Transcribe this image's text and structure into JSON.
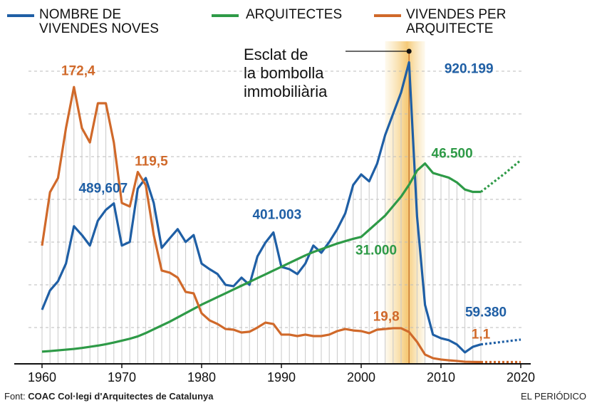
{
  "chart_data": {
    "type": "line",
    "x": [
      1960,
      1961,
      1962,
      1963,
      1964,
      1965,
      1966,
      1967,
      1968,
      1969,
      1970,
      1971,
      1972,
      1973,
      1974,
      1975,
      1976,
      1977,
      1978,
      1979,
      1980,
      1981,
      1982,
      1983,
      1984,
      1985,
      1986,
      1987,
      1988,
      1989,
      1990,
      1991,
      1992,
      1993,
      1994,
      1995,
      1996,
      1997,
      1998,
      1999,
      2000,
      2001,
      2002,
      2003,
      2004,
      2005,
      2006,
      2007,
      2008,
      2009,
      2010,
      2011,
      2012,
      2013,
      2014,
      2015,
      2016,
      2017,
      2018,
      2019,
      2020
    ],
    "xlim": [
      1960,
      2020
    ],
    "xticks": [
      1960,
      1970,
      1980,
      1990,
      2000,
      2010,
      2020
    ],
    "dashed_from": 2015,
    "highlight_range": [
      2003,
      2008
    ],
    "annotation": {
      "lines": [
        "Esclat de",
        "la bombolla",
        "immobiliària"
      ],
      "x": 2006
    },
    "series": [
      {
        "name": "NOMBRE DE VIVENDES NOVES",
        "color": "#1f5fa5",
        "ylim": [
          0,
          980000
        ],
        "values": [
          165000,
          224000,
          252000,
          306000,
          420000,
          393000,
          361000,
          437000,
          470000,
          489607,
          361000,
          372000,
          535000,
          567000,
          491000,
          354000,
          383000,
          411000,
          372000,
          393000,
          306000,
          289000,
          274000,
          241000,
          237000,
          263000,
          241000,
          328000,
          370000,
          401003,
          296000,
          289000,
          274000,
          306000,
          361000,
          339000,
          372000,
          411000,
          459000,
          546000,
          578000,
          557000,
          611000,
          698000,
          763000,
          828000,
          920199,
          450000,
          180000,
          89000,
          78000,
          72000,
          59000,
          35000,
          52000,
          59380,
          62000,
          65000,
          68000,
          71000,
          74000
        ],
        "value_labels": [
          null,
          null,
          null,
          null,
          null,
          null,
          null,
          null,
          null,
          "489,607",
          null,
          null,
          null,
          null,
          null,
          null,
          null,
          null,
          null,
          null,
          null,
          null,
          null,
          null,
          null,
          null,
          null,
          null,
          null,
          "401.003",
          null,
          null,
          null,
          null,
          null,
          null,
          null,
          null,
          null,
          null,
          null,
          null,
          null,
          null,
          null,
          null,
          "920.199",
          null,
          null,
          null,
          null,
          null,
          null,
          null,
          null,
          "59.380",
          null,
          null,
          null,
          null,
          null
        ]
      },
      {
        "name": "ARQUITECTES",
        "color": "#2e9a47",
        "ylim": [
          4200,
          72000
        ],
        "values": [
          6770,
          6900,
          7050,
          7200,
          7350,
          7550,
          7800,
          8050,
          8350,
          8700,
          9100,
          9500,
          10000,
          10700,
          11500,
          12300,
          13100,
          14000,
          14900,
          15800,
          16700,
          17500,
          18300,
          19100,
          19900,
          20700,
          21500,
          22300,
          23100,
          23900,
          24700,
          25500,
          26300,
          27100,
          27800,
          28400,
          29000,
          29600,
          30100,
          30600,
          31000,
          32500,
          34000,
          35500,
          37500,
          39500,
          42000,
          45000,
          46500,
          44500,
          44000,
          43500,
          42500,
          41000,
          40500,
          40500,
          41800,
          43100,
          44400,
          45800,
          47200
        ],
        "value_labels": [
          null,
          null,
          null,
          null,
          null,
          null,
          null,
          null,
          null,
          null,
          null,
          null,
          null,
          null,
          null,
          null,
          null,
          null,
          null,
          null,
          null,
          null,
          null,
          null,
          null,
          null,
          null,
          null,
          null,
          null,
          null,
          null,
          null,
          null,
          null,
          null,
          null,
          null,
          null,
          null,
          "31.000",
          null,
          null,
          null,
          null,
          null,
          null,
          null,
          "46.500",
          null,
          null,
          null,
          null,
          null,
          null,
          null,
          null,
          null,
          null,
          null,
          null
        ]
      },
      {
        "name": "VIVENDES PER ARQUITECTE",
        "color": "#d0692a",
        "ylim": [
          0,
          200
        ],
        "values": [
          73.6,
          106.9,
          115.7,
          146.8,
          172.4,
          146.8,
          137.9,
          162.3,
          162.3,
          137.9,
          100.2,
          98,
          119.5,
          111.3,
          80.3,
          58.1,
          56.8,
          53.7,
          44.8,
          43.9,
          31.5,
          27.1,
          24.8,
          21.7,
          21.3,
          19.5,
          20,
          22.6,
          25.7,
          24.8,
          18.2,
          18.2,
          17.3,
          18.2,
          17.3,
          17.3,
          18.2,
          20.4,
          21.7,
          20.8,
          20.4,
          19.1,
          21.3,
          21.7,
          22.2,
          22.2,
          19.8,
          13.7,
          5.8,
          3.5,
          2.7,
          2.2,
          1.8,
          1.3,
          1.2,
          1.1,
          1.1,
          1.1,
          1.1,
          1.1,
          1.1
        ],
        "value_labels": [
          null,
          null,
          null,
          null,
          "172,4",
          null,
          null,
          null,
          null,
          null,
          null,
          null,
          "119,5",
          null,
          null,
          null,
          null,
          null,
          null,
          null,
          null,
          null,
          null,
          null,
          null,
          null,
          null,
          null,
          null,
          null,
          null,
          null,
          null,
          null,
          null,
          null,
          null,
          null,
          null,
          null,
          null,
          null,
          null,
          null,
          null,
          null,
          "19,8",
          null,
          null,
          null,
          null,
          null,
          null,
          null,
          null,
          "1,1",
          null,
          null,
          null,
          null,
          null
        ]
      }
    ]
  },
  "footer": {
    "source_label": "Font:",
    "source": "COAC Col·legi d'Arquitectes de Catalunya",
    "publisher": "EL PERIÓDICO"
  }
}
